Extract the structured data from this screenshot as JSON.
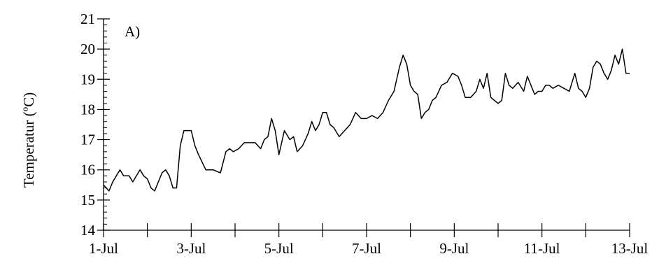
{
  "chart_data": {
    "type": "line",
    "title": "",
    "panel_label": "A)",
    "xlabel": "",
    "ylabel": "Temperatur (ºC)",
    "xlim": [
      "2000-07-01",
      "2000-07-13"
    ],
    "ylim": [
      14,
      21
    ],
    "y_ticks": [
      "14",
      "15",
      "16",
      "17",
      "18",
      "19",
      "20",
      "21"
    ],
    "x_tick_labels": [
      "1-Jul",
      "3-Jul",
      "5-Jul",
      "7-Jul",
      "9-Jul",
      "11-Jul",
      "13-Jul"
    ],
    "x_tick_label_dates": [
      "2000-07-01",
      "2000-07-03",
      "2000-07-05",
      "2000-07-07",
      "2000-07-09",
      "2000-07-11",
      "2000-07-13"
    ],
    "x_minor_tick_dates": [
      "2000-07-02",
      "2000-07-04",
      "2000-07-06",
      "2000-07-08",
      "2000-07-10",
      "2000-07-12"
    ],
    "grid": false,
    "legend": "none",
    "line_color": "#000000",
    "series": [
      {
        "x": [
          "2000-07-01 00:00",
          "2000-07-01 03:00",
          "2000-07-01 05:00",
          "2000-07-01 07:00",
          "2000-07-01 09:00",
          "2000-07-01 11:00",
          "2000-07-01 12:00",
          "2000-07-01 14:00",
          "2000-07-01 16:00",
          "2000-07-01 18:00",
          "2000-07-01 20:00",
          "2000-07-01 22:00",
          "2000-07-02 00:00",
          "2000-07-02 02:00",
          "2000-07-02 04:00",
          "2000-07-02 06:00",
          "2000-07-02 08:00",
          "2000-07-02 10:00",
          "2000-07-02 12:00",
          "2000-07-02 14:00",
          "2000-07-02 16:00",
          "2000-07-02 18:00",
          "2000-07-02 20:00",
          "2000-07-03 00:00",
          "2000-07-03 02:00",
          "2000-07-03 04:00",
          "2000-07-03 08:00",
          "2000-07-03 12:00",
          "2000-07-03 16:00",
          "2000-07-03 19:00",
          "2000-07-03 21:00",
          "2000-07-03 23:00",
          "2000-07-04 02:00",
          "2000-07-04 05:00",
          "2000-07-04 08:00",
          "2000-07-04 11:00",
          "2000-07-04 14:00",
          "2000-07-04 16:00",
          "2000-07-04 18:00",
          "2000-07-04 20:00",
          "2000-07-04 22:00",
          "2000-07-05 00:00",
          "2000-07-05 03:00",
          "2000-07-05 06:00",
          "2000-07-05 08:00",
          "2000-07-05 10:00",
          "2000-07-05 13:00",
          "2000-07-05 16:00",
          "2000-07-05 18:00",
          "2000-07-05 20:00",
          "2000-07-05 22:00",
          "2000-07-06 00:00",
          "2000-07-06 02:00",
          "2000-07-06 04:00",
          "2000-07-06 06:00",
          "2000-07-06 09:00",
          "2000-07-06 12:00",
          "2000-07-06 15:00",
          "2000-07-06 18:00",
          "2000-07-06 21:00",
          "2000-07-07 00:00",
          "2000-07-07 03:00",
          "2000-07-07 06:00",
          "2000-07-07 09:00",
          "2000-07-07 12:00",
          "2000-07-07 15:00",
          "2000-07-07 18:00",
          "2000-07-07 20:00",
          "2000-07-07 22:00",
          "2000-07-08 00:00",
          "2000-07-08 02:00",
          "2000-07-08 04:00",
          "2000-07-08 06:00",
          "2000-07-08 08:00",
          "2000-07-08 10:00",
          "2000-07-08 12:00",
          "2000-07-08 14:00",
          "2000-07-08 17:00",
          "2000-07-08 20:00",
          "2000-07-08 23:00",
          "2000-07-09 02:00",
          "2000-07-09 04:00",
          "2000-07-09 06:00",
          "2000-07-09 09:00",
          "2000-07-09 12:00",
          "2000-07-09 14:00",
          "2000-07-09 16:00",
          "2000-07-09 18:00",
          "2000-07-09 20:00",
          "2000-07-09 22:00",
          "2000-07-10 00:00",
          "2000-07-10 02:00",
          "2000-07-10 04:00",
          "2000-07-10 06:00",
          "2000-07-10 08:00",
          "2000-07-10 11:00",
          "2000-07-10 14:00",
          "2000-07-10 16:00",
          "2000-07-10 18:00",
          "2000-07-10 20:00",
          "2000-07-10 22:00",
          "2000-07-11 00:00",
          "2000-07-11 02:00",
          "2000-07-11 04:00",
          "2000-07-11 06:00",
          "2000-07-11 09:00",
          "2000-07-11 12:00",
          "2000-07-11 15:00",
          "2000-07-11 18:00",
          "2000-07-11 20:00",
          "2000-07-11 22:00",
          "2000-07-12 00:00",
          "2000-07-12 02:00",
          "2000-07-12 04:00",
          "2000-07-12 06:00",
          "2000-07-12 08:00",
          "2000-07-12 10:00",
          "2000-07-12 12:00",
          "2000-07-12 14:00",
          "2000-07-12 16:00",
          "2000-07-12 18:00",
          "2000-07-12 20:00",
          "2000-07-12 22:00",
          "2000-07-13 00:00"
        ],
        "y": [
          15.5,
          15.3,
          15.6,
          15.8,
          16.0,
          15.8,
          15.8,
          15.8,
          15.6,
          15.8,
          16.0,
          15.8,
          15.7,
          15.4,
          15.3,
          15.6,
          15.9,
          16.0,
          15.8,
          15.4,
          15.4,
          16.8,
          17.3,
          17.3,
          16.8,
          16.5,
          16.0,
          16.0,
          15.9,
          16.6,
          16.7,
          16.6,
          16.7,
          16.9,
          16.9,
          16.9,
          16.7,
          17.0,
          17.1,
          17.7,
          17.3,
          16.5,
          17.3,
          17.0,
          17.1,
          16.6,
          16.8,
          17.2,
          17.6,
          17.3,
          17.5,
          17.9,
          17.9,
          17.5,
          17.4,
          17.1,
          17.3,
          17.5,
          17.9,
          17.7,
          17.7,
          17.8,
          17.7,
          17.9,
          18.3,
          18.6,
          19.4,
          19.8,
          19.5,
          18.8,
          18.6,
          18.5,
          17.7,
          17.9,
          18.0,
          18.3,
          18.4,
          18.8,
          18.9,
          19.2,
          19.1,
          18.8,
          18.4,
          18.4,
          18.6,
          19.0,
          18.7,
          19.2,
          18.4,
          18.3,
          18.2,
          18.3,
          19.2,
          18.8,
          18.7,
          18.9,
          18.6,
          19.1,
          18.8,
          18.5,
          18.6,
          18.6,
          18.8,
          18.8,
          18.7,
          18.8,
          18.7,
          18.6,
          19.2,
          18.7,
          18.6,
          18.4,
          18.7,
          19.4,
          19.6,
          19.5,
          19.2,
          19.0,
          19.3,
          19.8,
          19.5,
          20.0,
          19.2,
          19.2
        ]
      }
    ]
  }
}
